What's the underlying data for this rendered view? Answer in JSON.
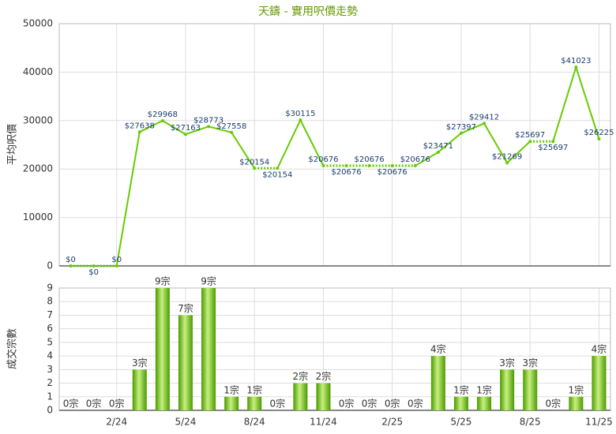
{
  "chart_data": [
    {
      "type": "line",
      "title": "天鑄 - 實用呎價走勢",
      "y_label": "平均呎價",
      "color": "#66cc00",
      "values": [
        0,
        0,
        0,
        27638,
        29968,
        27163,
        28773,
        27558,
        20154,
        20154,
        30115,
        20676,
        20676,
        20676,
        20676,
        20676,
        23471,
        27397,
        29412,
        21269,
        25697,
        25697,
        41023,
        26225
      ],
      "value_labels": [
        "$0",
        "$0",
        "$0",
        "$27638",
        "$29968",
        "$27163",
        "$28773",
        "$27558",
        "$20154",
        "$20154",
        "$30115",
        "$20676",
        "$20676",
        "$20676",
        "$20676",
        "$20676",
        "$23471",
        "$27397",
        "$29412",
        "$21269",
        "$25697",
        "$25697",
        "$41023",
        "$26225"
      ],
      "ylim": [
        0,
        50000
      ],
      "yticks": [
        0,
        10000,
        20000,
        30000,
        40000,
        50000
      ],
      "grid": true
    },
    {
      "type": "bar",
      "y_label": "成交宗數",
      "color": "#66bb00",
      "categories": [
        null,
        null,
        "2/24",
        null,
        null,
        "5/24",
        null,
        null,
        "8/24",
        null,
        null,
        "11/24",
        null,
        null,
        "2/25",
        null,
        null,
        "5/25",
        null,
        null,
        "8/25",
        null,
        null,
        "11/25"
      ],
      "values": [
        0,
        0,
        0,
        3,
        9,
        7,
        9,
        1,
        1,
        0,
        2,
        2,
        0,
        0,
        0,
        0,
        4,
        1,
        1,
        3,
        3,
        0,
        1,
        4
      ],
      "value_labels": [
        "0宗",
        "0宗",
        "0宗",
        "3宗",
        "9宗",
        "7宗",
        "9宗",
        "1宗",
        "1宗",
        "0宗",
        "2宗",
        "2宗",
        "0宗",
        "0宗",
        "0宗",
        "0宗",
        "4宗",
        "1宗",
        "1宗",
        "3宗",
        "3宗",
        "0宗",
        "1宗",
        "4宗"
      ],
      "ylim": [
        0,
        9
      ],
      "yticks": [
        0,
        1,
        2,
        3,
        4,
        5,
        6,
        7,
        8,
        9
      ],
      "grid": true
    }
  ]
}
